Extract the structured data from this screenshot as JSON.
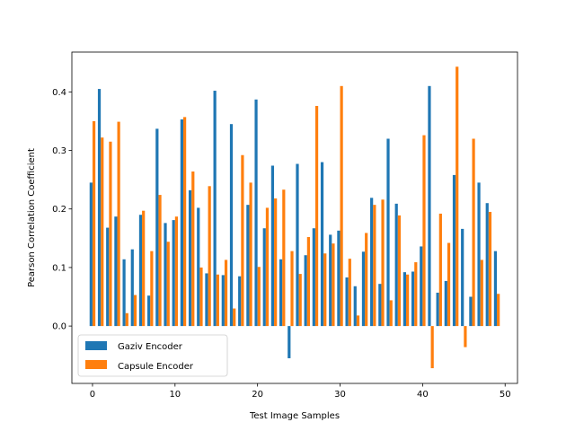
{
  "chart_data": {
    "type": "bar",
    "title": "",
    "xlabel": "Test Image Samples",
    "ylabel": "Pearson Correlation Coefficient",
    "xlim": [
      -2.5,
      51.5
    ],
    "ylim": [
      -0.098,
      0.468
    ],
    "x_ticks": [
      0,
      10,
      20,
      30,
      40,
      50
    ],
    "y_ticks": [
      0.0,
      0.1,
      0.2,
      0.3,
      0.4
    ],
    "x_tick_labels": [
      "0",
      "10",
      "20",
      "30",
      "40",
      "50"
    ],
    "y_tick_labels": [
      "0.0",
      "0.1",
      "0.2",
      "0.3",
      "0.4"
    ],
    "legend_position": "lower-left",
    "grid": false,
    "x": [
      0,
      1,
      2,
      3,
      4,
      5,
      6,
      7,
      8,
      9,
      10,
      11,
      12,
      13,
      14,
      15,
      16,
      17,
      18,
      19,
      20,
      21,
      22,
      23,
      24,
      25,
      26,
      27,
      28,
      29,
      30,
      31,
      32,
      33,
      34,
      35,
      36,
      37,
      38,
      39,
      40,
      41,
      42,
      43,
      44,
      45,
      46,
      47,
      48,
      49
    ],
    "series": [
      {
        "name": "Gaziv Encoder",
        "color": "#1f77b4",
        "values": [
          0.245,
          0.405,
          0.168,
          0.187,
          0.114,
          0.131,
          0.19,
          0.052,
          0.337,
          0.176,
          0.181,
          0.353,
          0.232,
          0.202,
          0.09,
          0.402,
          0.087,
          0.345,
          0.085,
          0.207,
          0.387,
          0.167,
          0.274,
          0.114,
          -0.055,
          0.277,
          0.121,
          0.167,
          0.28,
          0.156,
          0.163,
          0.083,
          0.068,
          0.127,
          0.219,
          0.072,
          0.32,
          0.209,
          0.092,
          0.093,
          0.136,
          0.41,
          0.057,
          0.077,
          0.258,
          0.166,
          0.05,
          0.245,
          0.21,
          0.128
        ]
      },
      {
        "name": "Capsule Encoder",
        "color": "#ff7f0e",
        "values": [
          0.35,
          0.322,
          0.315,
          0.349,
          0.022,
          0.053,
          0.197,
          0.128,
          0.224,
          0.144,
          0.187,
          0.357,
          0.264,
          0.1,
          0.239,
          0.088,
          0.113,
          0.03,
          0.292,
          0.245,
          0.101,
          0.202,
          0.218,
          0.233,
          0.128,
          0.089,
          0.152,
          0.376,
          0.124,
          0.141,
          0.41,
          0.115,
          0.018,
          0.159,
          0.207,
          0.216,
          0.044,
          0.189,
          0.088,
          0.109,
          0.326,
          -0.072,
          0.192,
          0.142,
          0.443,
          -0.036,
          0.32,
          0.113,
          0.195,
          0.055
        ]
      }
    ]
  }
}
